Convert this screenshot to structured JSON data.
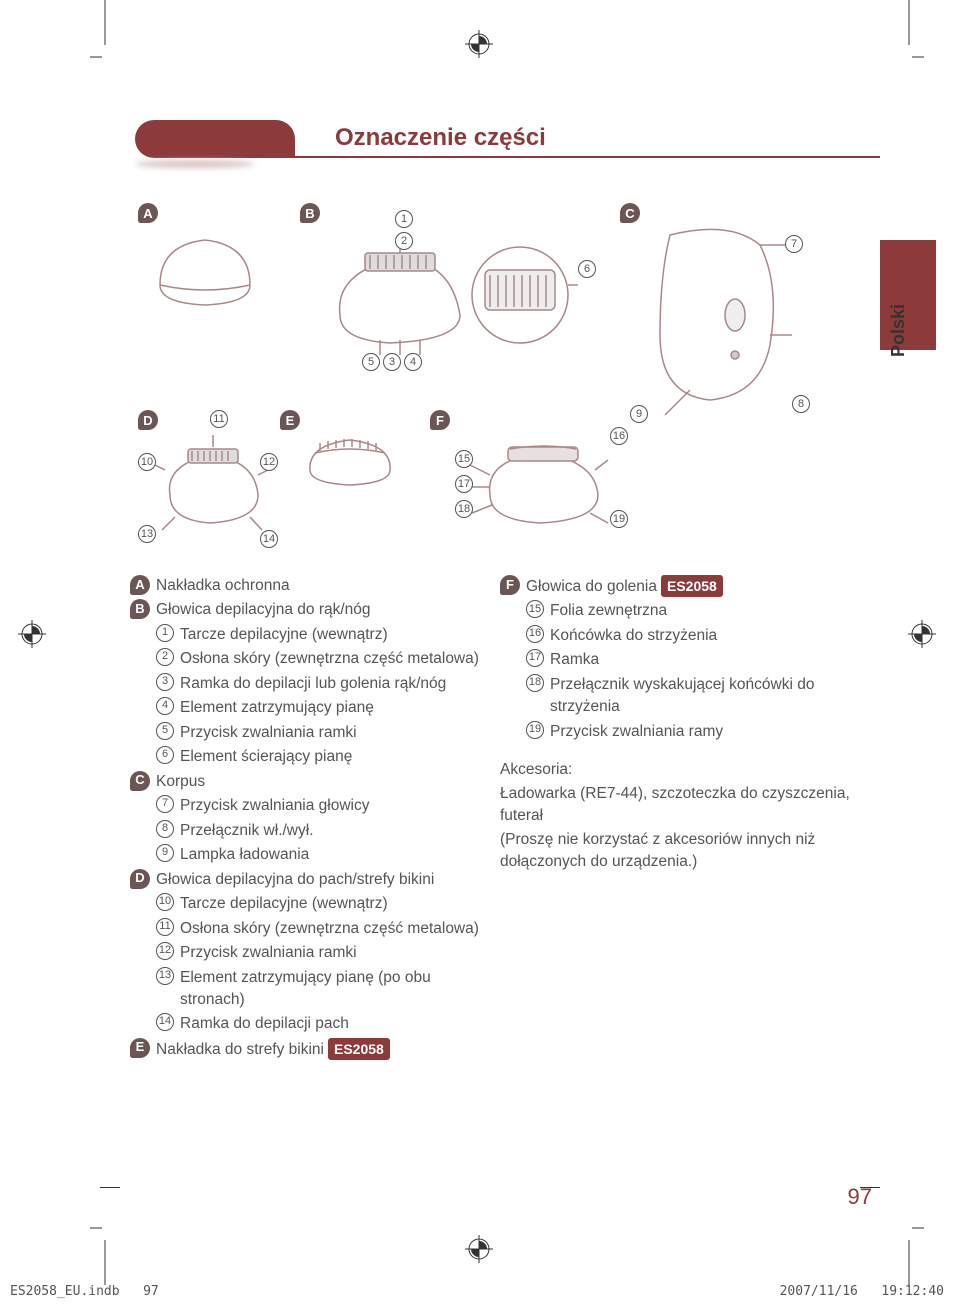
{
  "header": {
    "title": "Oznaczenie części"
  },
  "language_tab": "Polski",
  "page_number": "97",
  "footer": {
    "file": "ES2058_EU.indb",
    "page": "97",
    "date": "2007/11/16",
    "time": "19:12:40"
  },
  "model_badge": "ES2058",
  "diagram": {
    "letters": [
      "A",
      "B",
      "C",
      "D",
      "E",
      "F"
    ],
    "numbers_max": 19
  },
  "sections": [
    {
      "letter": "A",
      "title": "Nakładka ochronna",
      "items": []
    },
    {
      "letter": "B",
      "title": "Głowica depilacyjna do rąk/nóg",
      "items": [
        {
          "n": "1",
          "t": "Tarcze depilacyjne (wewnątrz)"
        },
        {
          "n": "2",
          "t": "Osłona skóry (zewnętrzna część metalowa)"
        },
        {
          "n": "3",
          "t": "Ramka do depilacji lub golenia rąk/nóg"
        },
        {
          "n": "4",
          "t": "Element zatrzymujący pianę"
        },
        {
          "n": "5",
          "t": "Przycisk zwalniania ramki"
        },
        {
          "n": "6",
          "t": "Element ścierający pianę"
        }
      ]
    },
    {
      "letter": "C",
      "title": "Korpus",
      "items": [
        {
          "n": "7",
          "t": "Przycisk zwalniania głowicy"
        },
        {
          "n": "8",
          "t": "Przełącznik wł./wył."
        },
        {
          "n": "9",
          "t": "Lampka ładowania"
        }
      ]
    },
    {
      "letter": "D",
      "title": "Głowica depilacyjna do pach/strefy bikini",
      "items": [
        {
          "n": "10",
          "t": "Tarcze depilacyjne (wewnątrz)"
        },
        {
          "n": "11",
          "t": "Osłona skóry (zewnętrzna część metalowa)"
        },
        {
          "n": "12",
          "t": "Przycisk zwalniania ramki"
        },
        {
          "n": "13",
          "t": "Element zatrzymujący pianę (po obu stronach)"
        },
        {
          "n": "14",
          "t": "Ramka do depilacji pach"
        }
      ]
    },
    {
      "letter": "E",
      "title": "Nakładka do strefy bikini",
      "badge": true,
      "items": []
    }
  ],
  "sections_right": [
    {
      "letter": "F",
      "title": "Głowica do golenia",
      "badge": true,
      "items": [
        {
          "n": "15",
          "t": "Folia zewnętrzna"
        },
        {
          "n": "16",
          "t": "Końcówka do strzyżenia"
        },
        {
          "n": "17",
          "t": "Ramka"
        },
        {
          "n": "18",
          "t": "Przełącznik wyskakującej końcówki do strzyżenia"
        },
        {
          "n": "19",
          "t": "Przycisk zwalniania ramy"
        }
      ]
    }
  ],
  "accessories": {
    "heading": "Akcesoria:",
    "line1": "Ładowarka (RE7-44), szczoteczka do czyszczenia, futerał",
    "line2": "(Proszę nie korzystać z akcesoriów innych niż dołączonych do urządzenia.)"
  }
}
